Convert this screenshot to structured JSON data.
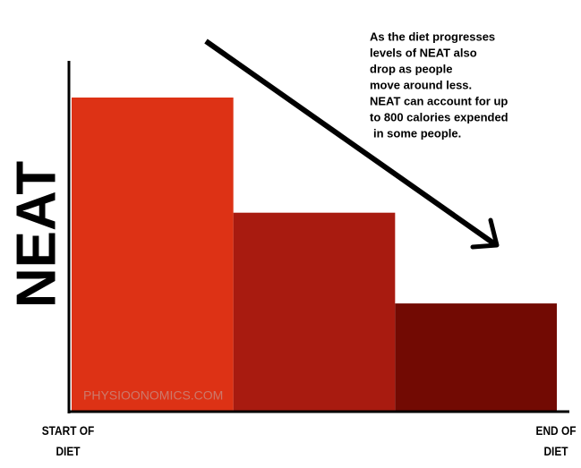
{
  "chart_data": {
    "type": "bar",
    "ylabel": "NEAT",
    "categories": [
      "START OF DIET",
      null,
      "END OF DIET"
    ],
    "values": [
      90,
      57,
      31
    ],
    "colors": [
      "#dd3215",
      "#a81b10",
      "#720a03"
    ],
    "ylim": [
      0,
      100
    ],
    "annotation": [
      "As the diet progresses",
      "levels of NEAT also",
      "drop as people",
      "move around less.",
      "NEAT can account for up",
      "to 800 calories expended",
      "in some people."
    ],
    "watermark": "PHYSIOONOMICS.COM"
  }
}
